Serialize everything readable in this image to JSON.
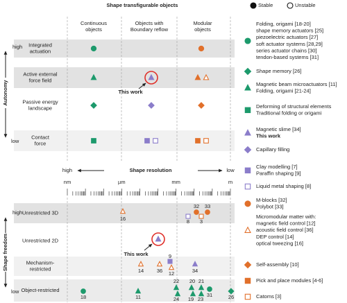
{
  "header": {
    "title": "Shape transfigurable objects",
    "stable": "Stable",
    "unstable": "Unstable"
  },
  "columns": [
    [
      "Continuous",
      "objects"
    ],
    [
      "Objects with",
      "Boundary reflow"
    ],
    [
      "Modular",
      "objects"
    ]
  ],
  "autonomy": {
    "label": "Autonomy",
    "high": "high",
    "low": "low",
    "rows": [
      [
        "Integrated",
        "actuation"
      ],
      [
        "Active external",
        "force field"
      ],
      [
        "Passive energy",
        "landscape"
      ],
      [
        "Contact",
        "force"
      ]
    ],
    "this_work": "This work"
  },
  "resolution": {
    "label": "Shape resolution",
    "high": "high",
    "low": "low",
    "units": [
      "nm",
      "µm",
      "mm",
      "m"
    ]
  },
  "freedom": {
    "label": "Shape freedom",
    "high": "high",
    "low": "low",
    "rows": [
      [
        "Unrestricted 3D"
      ],
      [
        "Unrestricted 2D"
      ],
      [
        "Mechanism-",
        "restricted"
      ],
      [
        "Object-restricted"
      ]
    ],
    "this_work": "This work",
    "refs": [
      "16",
      "32",
      "33",
      "8",
      "3",
      "9",
      "14",
      "36",
      "12",
      "34",
      "18",
      "11",
      "22",
      "20",
      "21",
      "24",
      "19",
      "23",
      "31",
      "26"
    ]
  },
  "legend": [
    {
      "lines": [
        "Folding, origami [18-20]",
        "shape memory actuators [25]",
        "piezoelectric actuators [27]",
        "soft actuator systems [28,29]",
        "series actuator chains [30]",
        "tendon-based systems [31]"
      ]
    },
    {
      "lines": [
        "Shape memory [26]"
      ]
    },
    {
      "lines": [
        "Magnetic beam microactuators [11]",
        "Folding, origami [21-24]"
      ]
    },
    {
      "lines": [
        "Deforming of structural elements",
        "Traditional folding or origami"
      ]
    },
    {
      "lines": [
        "Magnetic slime [34]",
        "This work"
      ]
    },
    {
      "lines": [
        "Capillary filling"
      ]
    },
    {
      "lines": [
        "Clay modelling [7]",
        "Paraffin shaping [9]"
      ]
    },
    {
      "lines": [
        "Liquid metal shaping [8]"
      ]
    },
    {
      "lines": [
        "M-blocks [32]",
        "Polybot [33]"
      ]
    },
    {
      "lines": [
        "Micromodular matter with:",
        "magnetic field control [12]",
        "acoustic  field control [36]",
        "DEP control [14]",
        "optical tweezing [16]"
      ]
    },
    {
      "lines": [
        "Self-assembly [10]"
      ]
    },
    {
      "lines": [
        "Pick and place modules [4-6]"
      ]
    },
    {
      "lines": [
        "Catoms [3]"
      ]
    }
  ]
}
